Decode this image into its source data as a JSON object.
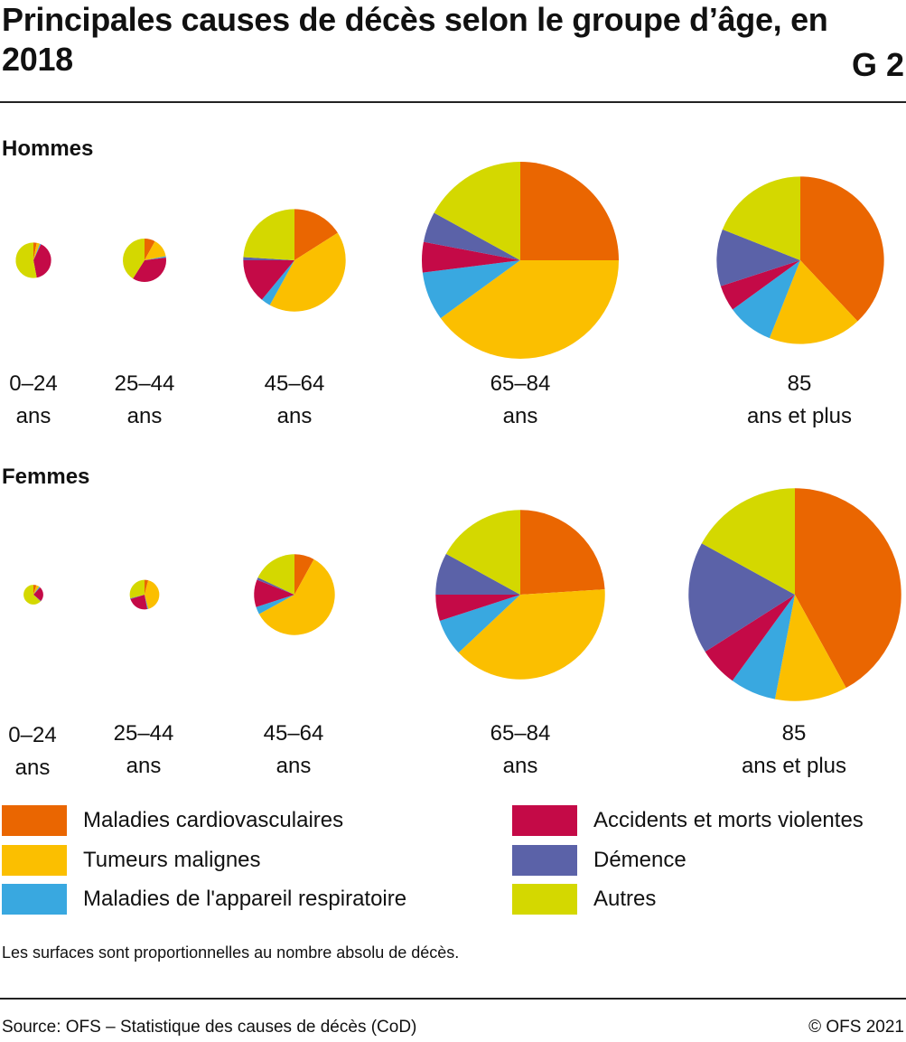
{
  "header": {
    "title": "Principales causes de décès selon le groupe d’âge, en 2018",
    "figure_id": "G 2"
  },
  "sections": {
    "men_title": "Hommes",
    "women_title": "Femmes"
  },
  "age_groups": {
    "g0": "0–24 ans",
    "g1": "25–44 ans",
    "g2": "45–64 ans",
    "g3": "65–84 ans",
    "g4": "85 ans et plus"
  },
  "legend": [
    {
      "key": "cardio",
      "label": "Maladies cardiovasculaires",
      "color": "#ea6601"
    },
    {
      "key": "tumeurs",
      "label": "Tumeurs malignes",
      "color": "#fbbf00"
    },
    {
      "key": "respi",
      "label": "Maladies de l'appareil respiratoire",
      "color": "#39a8e0"
    },
    {
      "key": "accidents",
      "label": "Accidents et morts violentes",
      "color": "#c40a47"
    },
    {
      "key": "demence",
      "label": "Démence",
      "color": "#5b62a8"
    },
    {
      "key": "autres",
      "label": "Autres",
      "color": "#d4d800"
    }
  ],
  "footer": {
    "note": "Les surfaces sont proportionnelles au nombre absolu de décès.",
    "source": "Source: OFS – Statistique des causes de décès (CoD)",
    "copyright": "© OFS 2021"
  },
  "chart_data": [
    {
      "type": "pie",
      "title": "Hommes",
      "unit": "% des décès (surface proportionnelle au nombre absolu de décès)",
      "categories": [
        "Maladies cardiovasculaires",
        "Tumeurs malignes",
        "Maladies de l'appareil respiratoire",
        "Accidents et morts violentes",
        "Démence",
        "Autres"
      ],
      "series": [
        {
          "name": "0–24 ans",
          "relative_size": 0.18,
          "values": [
            3,
            3,
            1,
            40,
            0,
            53
          ]
        },
        {
          "name": "25–44 ans",
          "relative_size": 0.22,
          "values": [
            8,
            14,
            1,
            36,
            0,
            41
          ]
        },
        {
          "name": "45–64 ans",
          "relative_size": 0.52,
          "values": [
            16,
            42,
            3,
            14,
            1,
            24
          ]
        },
        {
          "name": "65–84 ans",
          "relative_size": 1.0,
          "values": [
            25,
            40,
            8,
            5,
            5,
            17
          ]
        },
        {
          "name": "85 ans et plus",
          "relative_size": 0.85,
          "values": [
            38,
            18,
            9,
            5,
            11,
            19
          ]
        }
      ]
    },
    {
      "type": "pie",
      "title": "Femmes",
      "unit": "% des décès (surface proportionnelle au nombre absolu de décès)",
      "categories": [
        "Maladies cardiovasculaires",
        "Tumeurs malignes",
        "Maladies de l'appareil respiratoire",
        "Accidents et morts violentes",
        "Démence",
        "Autres"
      ],
      "series": [
        {
          "name": "0–24 ans",
          "relative_size": 0.1,
          "values": [
            5,
            5,
            2,
            24,
            1,
            63
          ]
        },
        {
          "name": "25–44 ans",
          "relative_size": 0.15,
          "values": [
            4,
            42,
            1,
            23,
            1,
            29
          ]
        },
        {
          "name": "45–64 ans",
          "relative_size": 0.41,
          "values": [
            8,
            59,
            3,
            11,
            1,
            18
          ]
        },
        {
          "name": "65–84 ans",
          "relative_size": 0.86,
          "values": [
            24,
            39,
            7,
            5,
            8,
            17
          ]
        },
        {
          "name": "85 ans et plus",
          "relative_size": 1.08,
          "values": [
            42,
            11,
            7,
            6,
            17,
            17
          ]
        }
      ]
    }
  ]
}
